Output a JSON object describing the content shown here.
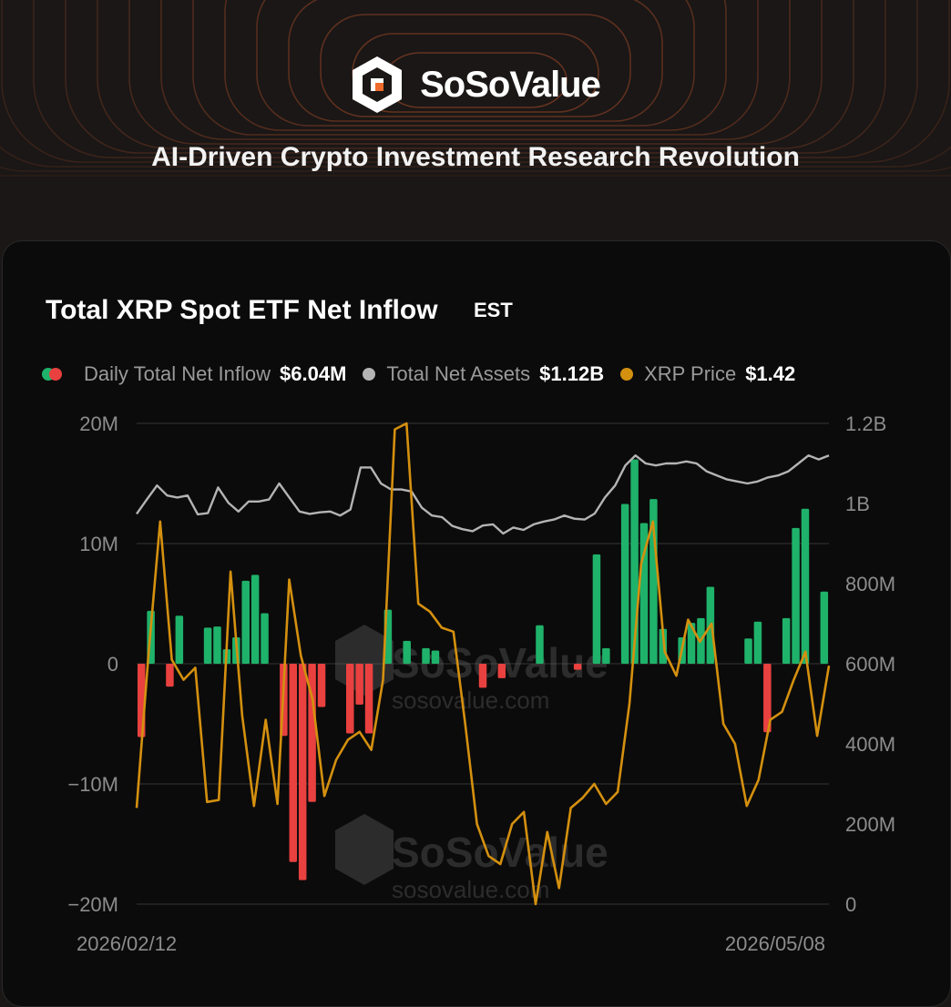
{
  "brand": {
    "name": "SoSoValue"
  },
  "header": {
    "tagline": "AI-Driven Crypto Investment Research Revolution"
  },
  "card": {
    "title": "Total XRP Spot ETF Net Inflow",
    "timezone": "EST"
  },
  "legend": [
    {
      "label": "Daily Total Net Inflow",
      "value": "$6.04M"
    },
    {
      "label": "Total Net Assets",
      "value": "$1.12B"
    },
    {
      "label": "XRP Price",
      "value": "$1.42"
    }
  ],
  "watermark": {
    "name": "SoSoValue",
    "url": "sosovalue.com"
  },
  "colors": {
    "positive": "#1fb26a",
    "negative": "#e8413f",
    "assets": "#b4b4b4",
    "price": "#d4900f",
    "grid": "#2e2e2e"
  },
  "chart_data": {
    "type": "bar",
    "x_start_label": "2026/02/12",
    "x_end_label": "2026/05/08",
    "y_left": {
      "ticks": [
        "20M",
        "10M",
        "0",
        "−10M",
        "−20M"
      ],
      "range": [
        -20000000,
        20000000
      ]
    },
    "y_right": {
      "ticks": [
        "1.2B",
        "1B",
        "800M",
        "600M",
        "400M",
        "200M",
        "0"
      ],
      "range": [
        0,
        1200000000
      ]
    },
    "grid": true,
    "series": [
      {
        "name": "Daily Total Net Inflow",
        "type": "bar",
        "axis": "left",
        "values": [
          -6.1,
          4.4,
          0,
          -1.9,
          4.0,
          0,
          0,
          3.0,
          3.1,
          1.2,
          2.2,
          6.9,
          7.4,
          4.2,
          0,
          -6.0,
          -16.5,
          -18.0,
          -11.5,
          -3.6,
          0,
          0,
          -5.8,
          -3.4,
          -5.8,
          0,
          4.5,
          0,
          1.9,
          0,
          1.3,
          1.1,
          0,
          0,
          0,
          0,
          -2.0,
          0,
          -1.2,
          0,
          0,
          0,
          3.2,
          0,
          0,
          0,
          -0.5,
          0,
          9.1,
          1.3,
          0,
          13.3,
          17.0,
          11.7,
          13.7,
          2.9,
          0,
          2.2,
          3.4,
          3.8,
          6.4,
          0,
          0,
          0,
          2.1,
          3.5,
          -5.7,
          0,
          3.8,
          11.3,
          12.9,
          0,
          6.0
        ]
      },
      {
        "name": "Total Net Assets",
        "type": "line",
        "axis": "right",
        "values": [
          974,
          1010,
          1045,
          1020,
          1015,
          1020,
          973,
          976,
          1040,
          1002,
          980,
          1005,
          1005,
          1010,
          1050,
          1015,
          980,
          974,
          978,
          980,
          970,
          985,
          1090,
          1090,
          1050,
          1035,
          1035,
          1030,
          990,
          970,
          966,
          944,
          936,
          931,
          945,
          948,
          925,
          940,
          934,
          948,
          955,
          960,
          970,
          962,
          960,
          975,
          1015,
          1045,
          1095,
          1120,
          1100,
          1095,
          1100,
          1100,
          1105,
          1100,
          1080,
          1070,
          1060,
          1055,
          1050,
          1055,
          1065,
          1070,
          1080,
          1100,
          1120,
          1110,
          1120
        ]
      },
      {
        "name": "XRP Price",
        "type": "line",
        "axis": "right",
        "values": [
          240,
          620,
          955,
          610,
          560,
          590,
          255,
          260,
          830,
          470,
          245,
          460,
          250,
          810,
          620,
          510,
          270,
          360,
          410,
          430,
          385,
          560,
          1185,
          1200,
          750,
          730,
          690,
          680,
          450,
          200,
          120,
          100,
          200,
          230,
          0,
          180,
          40,
          240,
          265,
          300,
          250,
          280,
          500,
          850,
          955,
          630,
          570,
          710,
          655,
          700,
          450,
          400,
          245,
          310,
          460,
          480,
          560,
          630,
          420,
          595
        ]
      }
    ]
  }
}
